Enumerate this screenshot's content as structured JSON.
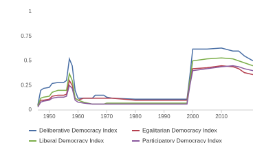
{
  "chart_data": {
    "type": "line",
    "x": [
      1946,
      1947,
      1948,
      1950,
      1951,
      1953,
      1955,
      1956,
      1957,
      1958,
      1959,
      1960,
      1962,
      1965,
      1966,
      1969,
      1970,
      1972,
      1980,
      1990,
      1998,
      1999,
      2000,
      2005,
      2010,
      2014,
      2016,
      2018,
      2021
    ],
    "series": [
      {
        "name": "Deliberative Democracy Index",
        "color": "#4a6fa5",
        "values": [
          0.05,
          0.2,
          0.22,
          0.23,
          0.27,
          0.28,
          0.28,
          0.3,
          0.52,
          0.45,
          0.2,
          0.12,
          0.12,
          0.12,
          0.15,
          0.15,
          0.13,
          0.12,
          0.11,
          0.11,
          0.11,
          0.35,
          0.62,
          0.62,
          0.63,
          0.6,
          0.6,
          0.55,
          0.5
        ]
      },
      {
        "name": "Egalitarian Democracy Index",
        "color": "#b5404f",
        "values": [
          0.05,
          0.1,
          0.1,
          0.11,
          0.14,
          0.15,
          0.15,
          0.16,
          0.3,
          0.25,
          0.12,
          0.1,
          0.12,
          0.12,
          0.12,
          0.12,
          0.12,
          0.12,
          0.1,
          0.1,
          0.1,
          0.3,
          0.42,
          0.43,
          0.45,
          0.44,
          0.42,
          0.38,
          0.36
        ]
      },
      {
        "name": "Liberal Democracy Index",
        "color": "#7cae4a",
        "values": [
          0.04,
          0.12,
          0.13,
          0.14,
          0.18,
          0.2,
          0.2,
          0.2,
          0.37,
          0.3,
          0.12,
          0.1,
          0.08,
          0.06,
          0.06,
          0.06,
          0.07,
          0.07,
          0.07,
          0.07,
          0.07,
          0.3,
          0.5,
          0.52,
          0.53,
          0.52,
          0.5,
          0.48,
          0.45
        ]
      },
      {
        "name": "Participatory Democracy Index",
        "color": "#8a5a9e",
        "values": [
          0.03,
          0.08,
          0.09,
          0.1,
          0.12,
          0.13,
          0.13,
          0.14,
          0.25,
          0.22,
          0.1,
          0.08,
          0.07,
          0.06,
          0.06,
          0.06,
          0.06,
          0.06,
          0.06,
          0.06,
          0.06,
          0.25,
          0.4,
          0.42,
          0.44,
          0.45,
          0.44,
          0.42,
          0.4
        ]
      }
    ],
    "xlim": [
      1946,
      2021
    ],
    "xticks": [
      1950,
      1960,
      1970,
      1980,
      1990,
      2000,
      2010
    ],
    "ylim": [
      0,
      1
    ],
    "yticks": [
      0,
      0.25,
      0.5,
      0.75,
      1
    ],
    "grid": false
  }
}
